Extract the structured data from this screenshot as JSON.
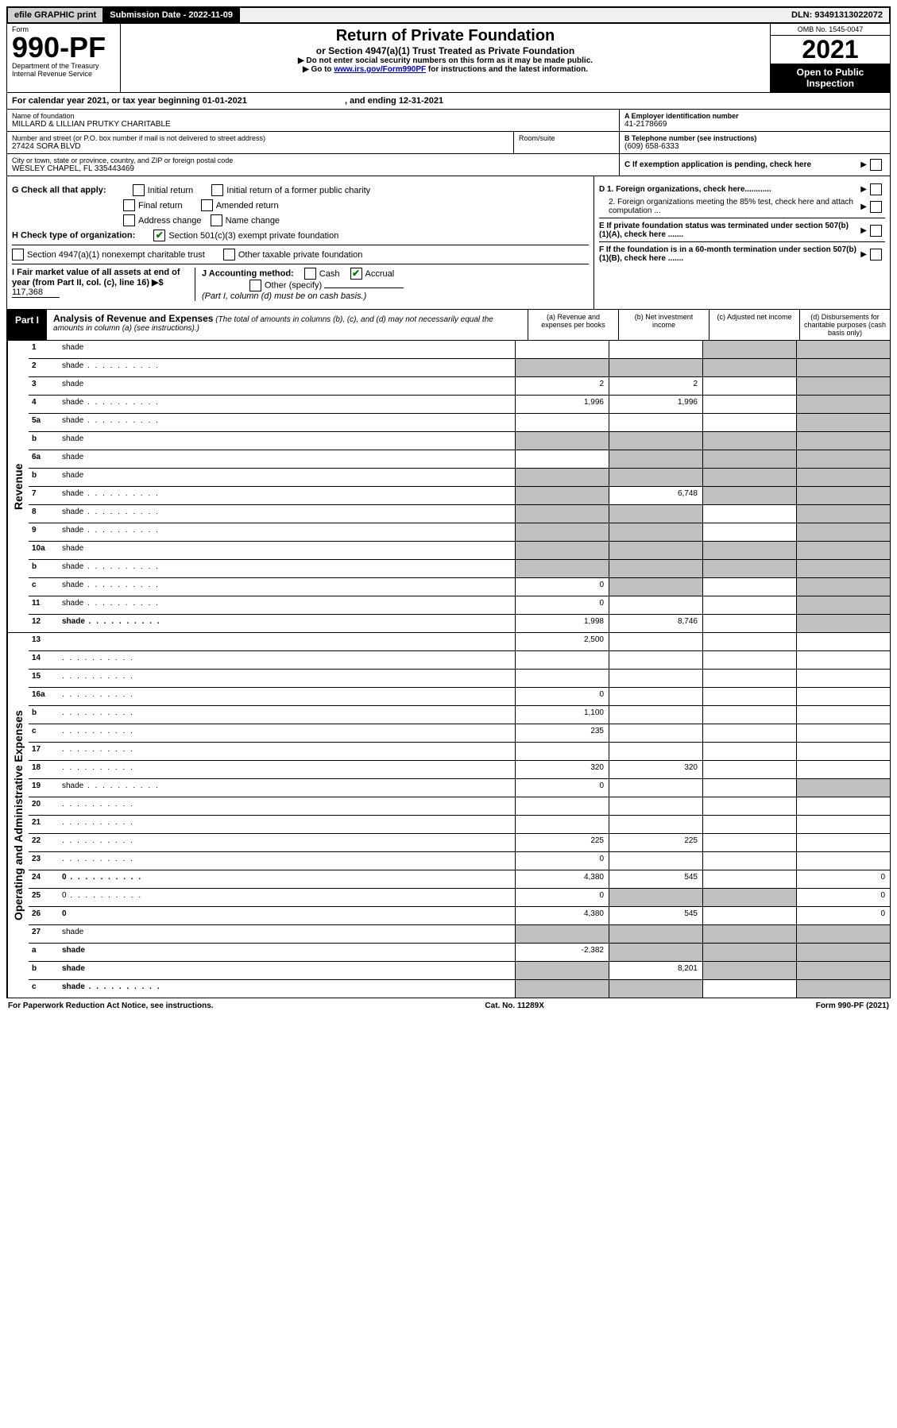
{
  "topbar": {
    "efile": "efile GRAPHIC print",
    "subdate_label": "Submission Date - 2022-11-09",
    "dln": "DLN: 93491313022072"
  },
  "header": {
    "form_label": "Form",
    "form_num": "990-PF",
    "dept": "Department of the Treasury",
    "irs": "Internal Revenue Service",
    "title": "Return of Private Foundation",
    "subtitle": "or Section 4947(a)(1) Trust Treated as Private Foundation",
    "instr1": "▶ Do not enter social security numbers on this form as it may be made public.",
    "instr2_pre": "▶ Go to ",
    "instr2_link": "www.irs.gov/Form990PF",
    "instr2_post": " for instructions and the latest information.",
    "omb": "OMB No. 1545-0047",
    "year": "2021",
    "open": "Open to Public Inspection"
  },
  "calendar": {
    "text1": "For calendar year 2021, or tax year beginning 01-01-2021",
    "text2": ", and ending 12-31-2021"
  },
  "info": {
    "name_lbl": "Name of foundation",
    "name": "MILLARD & LILLIAN PRUTKY CHARITABLE",
    "addr_lbl": "Number and street (or P.O. box number if mail is not delivered to street address)",
    "addr": "27424 SORA BLVD",
    "room_lbl": "Room/suite",
    "city_lbl": "City or town, state or province, country, and ZIP or foreign postal code",
    "city": "WESLEY CHAPEL, FL  335443469",
    "a_lbl": "A Employer identification number",
    "a_val": "41-2178669",
    "b_lbl": "B Telephone number (see instructions)",
    "b_val": "(609) 658-6333",
    "c_lbl": "C If exemption application is pending, check here",
    "d1": "D 1. Foreign organizations, check here............",
    "d2": "2. Foreign organizations meeting the 85% test, check here and attach computation ...",
    "e": "E  If private foundation status was terminated under section 507(b)(1)(A), check here .......",
    "f": "F  If the foundation is in a 60-month termination under section 507(b)(1)(B), check here .......",
    "g_lbl": "G Check all that apply:",
    "g_opts": [
      "Initial return",
      "Initial return of a former public charity",
      "Final return",
      "Amended return",
      "Address change",
      "Name change"
    ],
    "h_lbl": "H Check type of organization:",
    "h1": "Section 501(c)(3) exempt private foundation",
    "h2": "Section 4947(a)(1) nonexempt charitable trust",
    "h3": "Other taxable private foundation",
    "i_lbl": "I Fair market value of all assets at end of year (from Part II, col. (c), line 16) ▶$ ",
    "i_val": "117,368",
    "j_lbl": "J Accounting method:",
    "j_cash": "Cash",
    "j_accrual": "Accrual",
    "j_other": "Other (specify)",
    "j_note": "(Part I, column (d) must be on cash basis.)"
  },
  "part1": {
    "tab": "Part I",
    "title": "Analysis of Revenue and Expenses",
    "note": "(The total of amounts in columns (b), (c), and (d) may not necessarily equal the amounts in column (a) (see instructions).)",
    "cols": {
      "a": "(a) Revenue and expenses per books",
      "b": "(b) Net investment income",
      "c": "(c) Adjusted net income",
      "d": "(d) Disbursements for charitable purposes (cash basis only)"
    }
  },
  "sections": {
    "revenue": "Revenue",
    "expenses": "Operating and Administrative Expenses"
  },
  "rows": [
    {
      "n": "1",
      "d": "shade",
      "a": "",
      "b": "",
      "c": "shade"
    },
    {
      "n": "2",
      "d": "shade",
      "dots": true,
      "a": "shade",
      "b": "shade",
      "c": "shade"
    },
    {
      "n": "3",
      "d": "shade",
      "a": "2",
      "b": "2",
      "c": ""
    },
    {
      "n": "4",
      "d": "shade",
      "dots": true,
      "a": "1,996",
      "b": "1,996",
      "c": ""
    },
    {
      "n": "5a",
      "d": "shade",
      "dots": true,
      "a": "",
      "b": "",
      "c": ""
    },
    {
      "n": "b",
      "d": "shade",
      "a": "shade",
      "b": "shade",
      "c": "shade"
    },
    {
      "n": "6a",
      "d": "shade",
      "a": "",
      "b": "shade",
      "c": "shade"
    },
    {
      "n": "b",
      "d": "shade",
      "a": "shade",
      "b": "shade",
      "c": "shade"
    },
    {
      "n": "7",
      "d": "shade",
      "dots": true,
      "a": "shade",
      "b": "6,748",
      "c": "shade"
    },
    {
      "n": "8",
      "d": "shade",
      "dots": true,
      "a": "shade",
      "b": "shade",
      "c": ""
    },
    {
      "n": "9",
      "d": "shade",
      "dots": true,
      "a": "shade",
      "b": "shade",
      "c": ""
    },
    {
      "n": "10a",
      "d": "shade",
      "a": "shade",
      "b": "shade",
      "c": "shade"
    },
    {
      "n": "b",
      "d": "shade",
      "dots": true,
      "a": "shade",
      "b": "shade",
      "c": "shade"
    },
    {
      "n": "c",
      "d": "shade",
      "dots": true,
      "a": "0",
      "b": "shade",
      "c": ""
    },
    {
      "n": "11",
      "d": "shade",
      "dots": true,
      "a": "0",
      "b": "",
      "c": ""
    },
    {
      "n": "12",
      "d": "shade",
      "dots": true,
      "bold": true,
      "a": "1,998",
      "b": "8,746",
      "c": ""
    }
  ],
  "exp_rows": [
    {
      "n": "13",
      "d": "",
      "a": "2,500",
      "b": "",
      "c": ""
    },
    {
      "n": "14",
      "d": "",
      "dots": true,
      "a": "",
      "b": "",
      "c": ""
    },
    {
      "n": "15",
      "d": "",
      "dots": true,
      "a": "",
      "b": "",
      "c": ""
    },
    {
      "n": "16a",
      "d": "",
      "dots": true,
      "a": "0",
      "b": "",
      "c": ""
    },
    {
      "n": "b",
      "d": "",
      "dots": true,
      "a": "1,100",
      "b": "",
      "c": ""
    },
    {
      "n": "c",
      "d": "",
      "dots": true,
      "a": "235",
      "b": "",
      "c": ""
    },
    {
      "n": "17",
      "d": "",
      "dots": true,
      "a": "",
      "b": "",
      "c": ""
    },
    {
      "n": "18",
      "d": "",
      "dots": true,
      "a": "320",
      "b": "320",
      "c": ""
    },
    {
      "n": "19",
      "d": "shade",
      "dots": true,
      "a": "0",
      "b": "",
      "c": ""
    },
    {
      "n": "20",
      "d": "",
      "dots": true,
      "a": "",
      "b": "",
      "c": ""
    },
    {
      "n": "21",
      "d": "",
      "dots": true,
      "a": "",
      "b": "",
      "c": ""
    },
    {
      "n": "22",
      "d": "",
      "dots": true,
      "a": "225",
      "b": "225",
      "c": ""
    },
    {
      "n": "23",
      "d": "",
      "dots": true,
      "a": "0",
      "b": "",
      "c": ""
    },
    {
      "n": "24",
      "d": "0",
      "dots": true,
      "bold": true,
      "a": "4,380",
      "b": "545",
      "c": ""
    },
    {
      "n": "25",
      "d": "0",
      "dots": true,
      "a": "0",
      "b": "shade",
      "c": "shade"
    },
    {
      "n": "26",
      "d": "0",
      "bold": true,
      "a": "4,380",
      "b": "545",
      "c": ""
    },
    {
      "n": "27",
      "d": "shade",
      "a": "shade",
      "b": "shade",
      "c": "shade"
    },
    {
      "n": "a",
      "d": "shade",
      "bold": true,
      "a": "-2,382",
      "b": "shade",
      "c": "shade"
    },
    {
      "n": "b",
      "d": "shade",
      "bold": true,
      "a": "shade",
      "b": "8,201",
      "c": "shade"
    },
    {
      "n": "c",
      "d": "shade",
      "dots": true,
      "bold": true,
      "a": "shade",
      "b": "shade",
      "c": ""
    }
  ],
  "footer": {
    "pra": "For Paperwork Reduction Act Notice, see instructions.",
    "cat": "Cat. No. 11289X",
    "form": "Form 990-PF (2021)"
  }
}
